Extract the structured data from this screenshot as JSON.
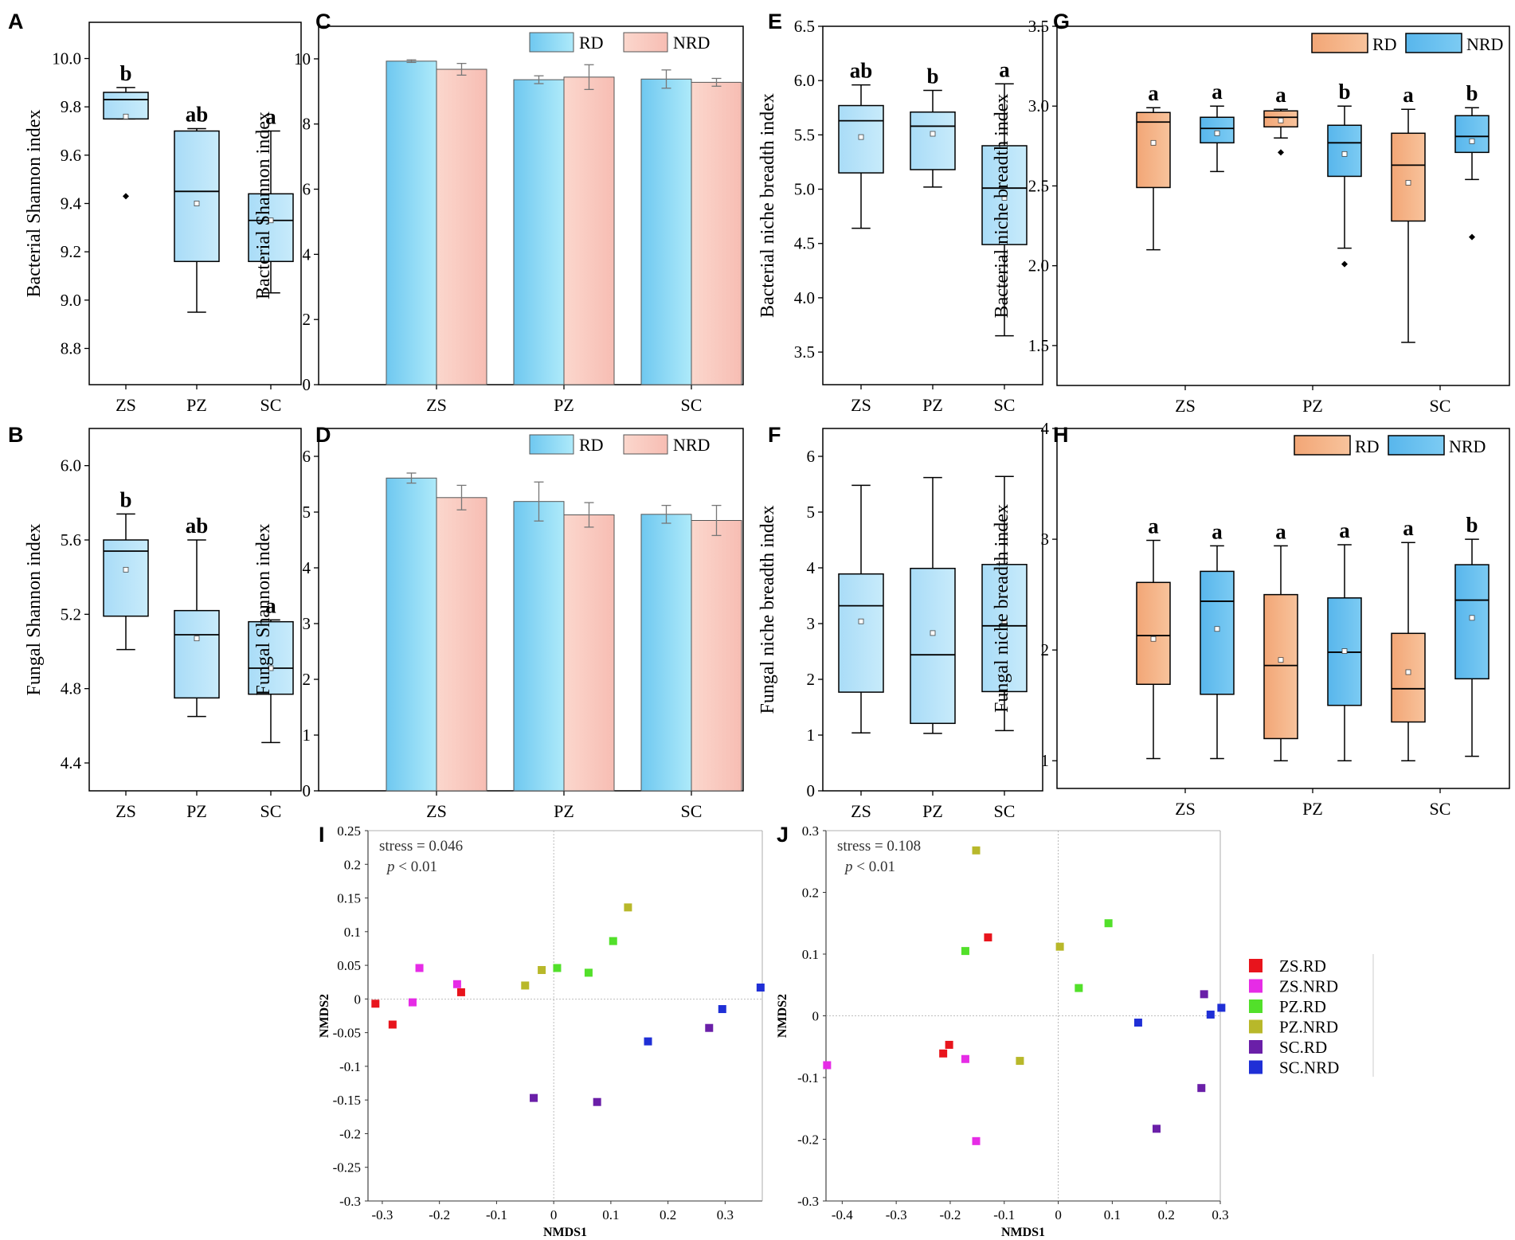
{
  "chart_data": [
    {
      "panel": "A",
      "type": "box",
      "ylabel": "Bacterial Shannon index",
      "ylim": [
        8.65,
        10.15
      ],
      "yticks": [
        "8.8",
        "9.0",
        "9.2",
        "9.4",
        "9.6",
        "9.8",
        "10.0"
      ],
      "categories": [
        "ZS",
        "PZ",
        "SC"
      ],
      "boxes": [
        {
          "name": "ZS",
          "min": 9.75,
          "q1": 9.75,
          "median": 9.83,
          "q3": 9.86,
          "max": 9.88,
          "mean": 9.76,
          "outliers": [
            9.43
          ],
          "letter": "b",
          "color": "blue"
        },
        {
          "name": "PZ",
          "min": 8.95,
          "q1": 9.16,
          "median": 9.45,
          "q3": 9.7,
          "max": 9.71,
          "mean": 9.4,
          "outliers": [],
          "letter": "ab",
          "color": "blue"
        },
        {
          "name": "SC",
          "min": 9.03,
          "q1": 9.16,
          "median": 9.33,
          "q3": 9.44,
          "max": 9.7,
          "mean": 9.33,
          "outliers": [],
          "letter": "a",
          "color": "blue"
        }
      ]
    },
    {
      "panel": "B",
      "type": "box",
      "ylabel": "Fungal Shannon index",
      "ylim": [
        4.25,
        6.2
      ],
      "yticks": [
        "4.4",
        "4.8",
        "5.2",
        "5.6",
        "6.0"
      ],
      "categories": [
        "ZS",
        "PZ",
        "SC"
      ],
      "boxes": [
        {
          "name": "ZS",
          "min": 5.01,
          "q1": 5.19,
          "median": 5.54,
          "q3": 5.6,
          "max": 5.74,
          "mean": 5.44,
          "outliers": [],
          "letter": "b",
          "color": "blue"
        },
        {
          "name": "PZ",
          "min": 4.65,
          "q1": 4.75,
          "median": 5.09,
          "q3": 5.22,
          "max": 5.6,
          "mean": 5.07,
          "outliers": [],
          "letter": "ab",
          "color": "blue"
        },
        {
          "name": "SC",
          "min": 4.51,
          "q1": 4.77,
          "median": 4.91,
          "q3": 5.16,
          "max": 5.17,
          "mean": 4.91,
          "outliers": [],
          "letter": "a",
          "color": "blue"
        }
      ]
    },
    {
      "panel": "C",
      "type": "bar",
      "ylabel": "Bacterial Shannon index",
      "ylim": [
        0,
        11
      ],
      "yticks": [
        "0",
        "2",
        "4",
        "6",
        "8",
        "10"
      ],
      "categories": [
        "ZS",
        "PZ",
        "SC"
      ],
      "legend": [
        "RD",
        "NRD"
      ],
      "series": [
        {
          "name": "RD",
          "values": [
            9.93,
            9.36,
            9.38
          ],
          "errors": [
            0.04,
            0.12,
            0.28
          ]
        },
        {
          "name": "NRD",
          "values": [
            9.68,
            9.44,
            9.28
          ],
          "errors": [
            0.18,
            0.38,
            0.12
          ]
        }
      ]
    },
    {
      "panel": "D",
      "type": "bar",
      "ylabel": "Fungal Shannon index",
      "ylim": [
        0,
        6.5
      ],
      "yticks": [
        "0",
        "1",
        "2",
        "3",
        "4",
        "5",
        "6"
      ],
      "categories": [
        "ZS",
        "PZ",
        "SC"
      ],
      "legend": [
        "RD",
        "NRD"
      ],
      "series": [
        {
          "name": "RD",
          "values": [
            5.61,
            5.19,
            4.96
          ],
          "errors": [
            0.09,
            0.35,
            0.16
          ]
        },
        {
          "name": "NRD",
          "values": [
            5.26,
            4.95,
            4.85
          ],
          "errors": [
            0.22,
            0.22,
            0.27
          ]
        }
      ]
    },
    {
      "panel": "E",
      "type": "box",
      "ylabel": "Bacterial niche breadth index",
      "ylim": [
        3.2,
        6.5
      ],
      "yticks": [
        "3.5",
        "4.0",
        "4.5",
        "5.0",
        "5.5",
        "6.0",
        "6.5"
      ],
      "categories": [
        "ZS",
        "PZ",
        "SC"
      ],
      "boxes": [
        {
          "name": "ZS",
          "min": 4.64,
          "q1": 5.15,
          "median": 5.63,
          "q3": 5.77,
          "max": 5.96,
          "mean": 5.48,
          "outliers": [],
          "letter": "ab",
          "color": "blue"
        },
        {
          "name": "PZ",
          "min": 5.02,
          "q1": 5.18,
          "median": 5.58,
          "q3": 5.71,
          "max": 5.91,
          "mean": 5.51,
          "outliers": [],
          "letter": "b",
          "color": "blue"
        },
        {
          "name": "SC",
          "min": 3.65,
          "q1": 4.49,
          "median": 5.01,
          "q3": 5.4,
          "max": 5.97,
          "mean": 4.92,
          "outliers": [],
          "letter": "a",
          "color": "blue"
        }
      ]
    },
    {
      "panel": "F",
      "type": "box",
      "ylabel": "Fungal niche breadth index",
      "ylim": [
        0,
        6.5
      ],
      "yticks": [
        "0",
        "1",
        "2",
        "3",
        "4",
        "5",
        "6"
      ],
      "categories": [
        "ZS",
        "PZ",
        "SC"
      ],
      "boxes": [
        {
          "name": "ZS",
          "min": 1.04,
          "q1": 1.77,
          "median": 3.32,
          "q3": 3.89,
          "max": 5.48,
          "mean": 3.04,
          "outliers": [],
          "letter": "",
          "color": "blue"
        },
        {
          "name": "PZ",
          "min": 1.03,
          "q1": 1.21,
          "median": 2.44,
          "q3": 3.99,
          "max": 5.62,
          "mean": 2.83,
          "outliers": [],
          "letter": "",
          "color": "blue"
        },
        {
          "name": "SC",
          "min": 1.08,
          "q1": 1.78,
          "median": 2.96,
          "q3": 4.06,
          "max": 5.64,
          "mean": 3.03,
          "outliers": [],
          "letter": "",
          "color": "blue"
        }
      ]
    },
    {
      "panel": "G",
      "type": "box",
      "ylabel": "Bacterial niche breadth index",
      "ylim": [
        1.25,
        3.5
      ],
      "yticks": [
        "1.5",
        "2.0",
        "2.5",
        "3.0",
        "3.5"
      ],
      "categories": [
        "ZS",
        "PZ",
        "SC"
      ],
      "legend": [
        "RD",
        "NRD"
      ],
      "boxes": [
        {
          "name": "ZS RD",
          "group": 0,
          "min": 2.1,
          "q1": 2.49,
          "median": 2.9,
          "q3": 2.96,
          "max": 2.99,
          "mean": 2.77,
          "outliers": [],
          "letter": "a",
          "color": "orange"
        },
        {
          "name": "ZS NRD",
          "group": 0,
          "min": 2.59,
          "q1": 2.77,
          "median": 2.86,
          "q3": 2.93,
          "max": 3.0,
          "mean": 2.83,
          "outliers": [],
          "letter": "a",
          "color": "blue"
        },
        {
          "name": "PZ RD",
          "group": 1,
          "min": 2.8,
          "q1": 2.87,
          "median": 2.93,
          "q3": 2.97,
          "max": 2.98,
          "mean": 2.91,
          "outliers": [
            2.71
          ],
          "letter": "a",
          "color": "orange"
        },
        {
          "name": "PZ NRD",
          "group": 1,
          "min": 2.11,
          "q1": 2.56,
          "median": 2.77,
          "q3": 2.88,
          "max": 3.0,
          "mean": 2.7,
          "outliers": [
            2.01
          ],
          "letter": "b",
          "color": "blue"
        },
        {
          "name": "SC RD",
          "group": 2,
          "min": 1.52,
          "q1": 2.28,
          "median": 2.63,
          "q3": 2.83,
          "max": 2.98,
          "mean": 2.52,
          "outliers": [],
          "letter": "a",
          "color": "orange"
        },
        {
          "name": "SC NRD",
          "group": 2,
          "min": 2.54,
          "q1": 2.71,
          "median": 2.81,
          "q3": 2.94,
          "max": 2.99,
          "mean": 2.78,
          "outliers": [
            2.18
          ],
          "letter": "b",
          "color": "blue"
        }
      ]
    },
    {
      "panel": "H",
      "type": "box",
      "ylabel": "Fungal niche breadth index",
      "ylim": [
        0.75,
        4
      ],
      "yticks": [
        "1",
        "2",
        "3",
        "4"
      ],
      "categories": [
        "ZS",
        "PZ",
        "SC"
      ],
      "legend": [
        "RD",
        "NRD"
      ],
      "boxes": [
        {
          "name": "ZS RD",
          "group": 0,
          "min": 1.02,
          "q1": 1.69,
          "median": 2.13,
          "q3": 2.61,
          "max": 2.99,
          "mean": 2.1,
          "outliers": [],
          "letter": "a",
          "color": "orange"
        },
        {
          "name": "ZS NRD",
          "group": 0,
          "min": 1.02,
          "q1": 1.6,
          "median": 2.44,
          "q3": 2.71,
          "max": 2.94,
          "mean": 2.19,
          "outliers": [],
          "letter": "a",
          "color": "blue"
        },
        {
          "name": "PZ RD",
          "group": 1,
          "min": 1.0,
          "q1": 1.2,
          "median": 1.86,
          "q3": 2.5,
          "max": 2.94,
          "mean": 1.91,
          "outliers": [],
          "letter": "a",
          "color": "orange"
        },
        {
          "name": "PZ NRD",
          "group": 1,
          "min": 1.0,
          "q1": 1.5,
          "median": 1.98,
          "q3": 2.47,
          "max": 2.95,
          "mean": 1.99,
          "outliers": [],
          "letter": "a",
          "color": "blue"
        },
        {
          "name": "SC RD",
          "group": 2,
          "min": 1.0,
          "q1": 1.35,
          "median": 1.65,
          "q3": 2.15,
          "max": 2.97,
          "mean": 1.8,
          "outliers": [],
          "letter": "a",
          "color": "orange"
        },
        {
          "name": "SC NRD",
          "group": 2,
          "min": 1.04,
          "q1": 1.74,
          "median": 2.45,
          "q3": 2.77,
          "max": 3.0,
          "mean": 2.29,
          "outliers": [],
          "letter": "b",
          "color": "blue"
        }
      ]
    },
    {
      "panel": "I",
      "type": "scatter",
      "xlabel": "NMDS1",
      "ylabel": "NMDS2",
      "xlim": [
        -0.325,
        0.365
      ],
      "ylim": [
        -0.3,
        0.25
      ],
      "xticks": [
        -0.3,
        -0.2,
        -0.1,
        0,
        0.1,
        0.2,
        0.3
      ],
      "xtick_labels": [
        "-0.3",
        "-0.2",
        "-0.1",
        "0",
        "0.1",
        "0.2",
        "0.3"
      ],
      "yticks": [
        -0.3,
        -0.25,
        -0.2,
        -0.15,
        -0.1,
        -0.05,
        0,
        0.05,
        0.1,
        0.15,
        0.2,
        0.25
      ],
      "ytick_labels": [
        "-0.3",
        "-0.25",
        "-0.2",
        "-0.15",
        "-0.1",
        "-0.05",
        "0",
        "0.05",
        "0.1",
        "0.15",
        "0.2",
        "0.25"
      ],
      "annotation_stress": "stress = 0.046",
      "annotation_p": "< 0.01",
      "series": [
        {
          "name": "ZS.RD",
          "color": "#e8141c",
          "points": [
            [
              -0.312,
              -0.007
            ],
            [
              -0.282,
              -0.038
            ],
            [
              -0.162,
              0.01
            ]
          ]
        },
        {
          "name": "ZS.NRD",
          "color": "#e62ce6",
          "points": [
            [
              -0.235,
              0.046
            ],
            [
              -0.247,
              -0.005
            ],
            [
              -0.169,
              0.022
            ]
          ]
        },
        {
          "name": "PZ.RD",
          "color": "#52e02a",
          "points": [
            [
              0.006,
              0.046
            ],
            [
              0.061,
              0.039
            ],
            [
              0.104,
              0.086
            ]
          ]
        },
        {
          "name": "PZ.NRD",
          "color": "#b8b82a",
          "points": [
            [
              -0.021,
              0.043
            ],
            [
              -0.05,
              0.02
            ],
            [
              0.13,
              0.136
            ]
          ]
        },
        {
          "name": "SC.RD",
          "color": "#6a1fa8",
          "points": [
            [
              -0.035,
              -0.147
            ],
            [
              0.076,
              -0.153
            ],
            [
              0.272,
              -0.043
            ]
          ]
        },
        {
          "name": "SC.NRD",
          "color": "#1f2fd6",
          "points": [
            [
              0.165,
              -0.063
            ],
            [
              0.295,
              -0.015
            ],
            [
              0.362,
              0.017
            ]
          ]
        }
      ]
    },
    {
      "panel": "J",
      "type": "scatter",
      "xlabel": "NMDS1",
      "ylabel": "NMDS2",
      "xlim": [
        -0.43,
        0.3
      ],
      "ylim": [
        -0.3,
        0.3
      ],
      "xticks": [
        -0.4,
        -0.3,
        -0.2,
        -0.1,
        0,
        0.1,
        0.2,
        0.3
      ],
      "xtick_labels": [
        "-0.4",
        "-0.3",
        "-0.2",
        "-0.1",
        "0",
        "0.1",
        "0.2",
        "0.3"
      ],
      "yticks": [
        -0.3,
        -0.2,
        -0.1,
        0,
        0.1,
        0.2,
        0.3
      ],
      "ytick_labels": [
        "-0.3",
        "-0.2",
        "-0.1",
        "0",
        "0.1",
        "0.2",
        "0.3"
      ],
      "annotation_stress": "stress = 0.108",
      "annotation_p": "< 0.01",
      "series": [
        {
          "name": "ZS.RD",
          "color": "#e8141c",
          "points": [
            [
              -0.13,
              0.127
            ],
            [
              -0.202,
              -0.047
            ],
            [
              -0.213,
              -0.061
            ]
          ]
        },
        {
          "name": "ZS.NRD",
          "color": "#e62ce6",
          "points": [
            [
              -0.428,
              -0.08
            ],
            [
              -0.172,
              -0.07
            ],
            [
              -0.152,
              -0.203
            ]
          ]
        },
        {
          "name": "PZ.RD",
          "color": "#52e02a",
          "points": [
            [
              -0.172,
              0.105
            ],
            [
              0.038,
              0.045
            ],
            [
              0.093,
              0.15
            ]
          ]
        },
        {
          "name": "PZ.NRD",
          "color": "#b8b82a",
          "points": [
            [
              -0.152,
              0.268
            ],
            [
              0.003,
              0.112
            ],
            [
              -0.071,
              -0.073
            ]
          ]
        },
        {
          "name": "SC.RD",
          "color": "#6a1fa8",
          "points": [
            [
              0.27,
              0.035
            ],
            [
              0.265,
              -0.117
            ],
            [
              0.182,
              -0.183
            ]
          ]
        },
        {
          "name": "SC.NRD",
          "color": "#1f2fd6",
          "points": [
            [
              0.148,
              -0.011
            ],
            [
              0.282,
              0.002
            ],
            [
              0.302,
              0.013
            ]
          ]
        }
      ]
    }
  ],
  "panel_labels": [
    "A",
    "B",
    "C",
    "D",
    "E",
    "F",
    "G",
    "H",
    "I",
    "J"
  ],
  "legend_shared": [
    "ZS.RD",
    "ZS.NRD",
    "PZ.RD",
    "PZ.NRD",
    "SC.RD",
    "SC.NRD"
  ],
  "legend_colors": [
    "#e8141c",
    "#e62ce6",
    "#52e02a",
    "#b8b82a",
    "#6a1fa8",
    "#1f2fd6"
  ],
  "italic_p": "p",
  "colors": {
    "blue_fill": "#b6e3fb",
    "blue_fill_dark": "#7dcdf5",
    "orange_fill": "#f7b98a",
    "bar_blue_top": "#a6e8f8",
    "bar_pink": "#f8c9c0"
  }
}
